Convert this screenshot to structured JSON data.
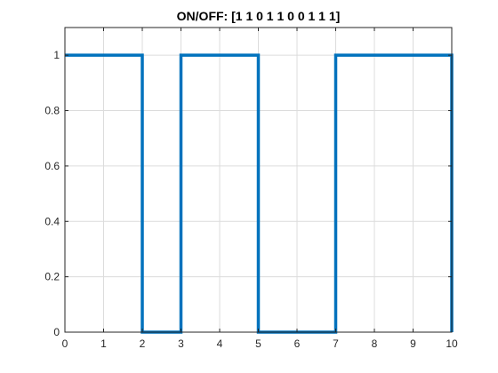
{
  "chart_data": {
    "type": "line",
    "title": "ON/OFF: [1  1  0  1  1  0  0  1  1  1]",
    "xlabel": "",
    "ylabel": "",
    "xlim": [
      0,
      10
    ],
    "ylim": [
      0,
      1.1
    ],
    "grid": true,
    "step": "post",
    "x_ticks": [
      0,
      1,
      2,
      3,
      4,
      5,
      6,
      7,
      8,
      9,
      10
    ],
    "y_ticks": [
      0,
      0.2,
      0.4,
      0.6,
      0.8,
      1
    ],
    "x_tick_labels": [
      "0",
      "1",
      "2",
      "3",
      "4",
      "5",
      "6",
      "7",
      "8",
      "9",
      "10"
    ],
    "y_tick_labels": [
      "0",
      "0.2",
      "0.4",
      "0.6",
      "0.8",
      "1"
    ],
    "series": [
      {
        "x": [
          0,
          1,
          2,
          3,
          4,
          5,
          6,
          7,
          8,
          9,
          10
        ],
        "values": [
          1,
          1,
          0,
          1,
          1,
          0,
          0,
          1,
          1,
          1,
          0
        ],
        "color": "#0072BD"
      }
    ]
  },
  "colors": {
    "axis": "#262626",
    "grid": "#DCDCDC",
    "line": "#0072BD"
  }
}
